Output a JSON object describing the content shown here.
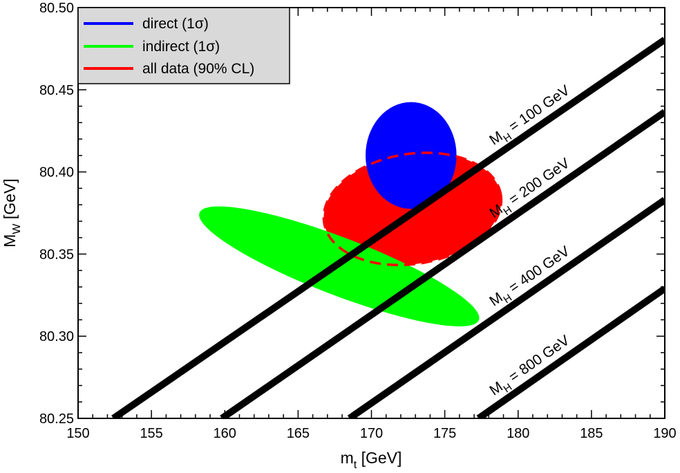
{
  "chart_data": {
    "type": "scatter",
    "title": "",
    "xlabel": {
      "main": "m",
      "sub": "t",
      "unit": "[GeV]"
    },
    "ylabel": {
      "main": "M",
      "sub": "W",
      "unit": "[GeV]"
    },
    "xlim": [
      150,
      190
    ],
    "ylim": [
      80.25,
      80.5
    ],
    "x_ticks": [
      "150",
      "155",
      "160",
      "165",
      "170",
      "175",
      "180",
      "185",
      "190"
    ],
    "y_ticks": [
      "80.25",
      "80.30",
      "80.35",
      "80.40",
      "80.45",
      "80.50"
    ],
    "grid": false,
    "legend_position": "top-left",
    "legend": [
      {
        "label": "direct (1σ)",
        "color": "#0000ff"
      },
      {
        "label": "indirect (1σ)",
        "color": "#00ff00"
      },
      {
        "label": "all data (90% CL)",
        "color": "#ff0000"
      }
    ],
    "regions": [
      {
        "name": "all data (90% CL)",
        "color": "#ff0000",
        "center": [
          172.8,
          80.3775
        ],
        "semi_axes": [
          6.1,
          0.0335
        ],
        "angle_deg": 9
      },
      {
        "name": "direct (1σ)",
        "color": "#0000ff",
        "center": [
          172.7,
          80.41
        ],
        "semi_axes": [
          3.1,
          0.0325
        ],
        "angle_deg": 0
      },
      {
        "name": "indirect (1σ)",
        "color": "#00ff00",
        "center": [
          167.8,
          80.3425
        ],
        "semi_axes": [
          10.2,
          0.0175
        ],
        "angle_deg": -21
      }
    ],
    "higgs_lines": [
      {
        "label_main": "M",
        "label_sub": "H",
        "label_rest": "= 100 GeV",
        "x_start": 152.4,
        "x_end": 190,
        "y_start": 80.25,
        "y_end": 80.4805
      },
      {
        "label_main": "M",
        "label_sub": "H",
        "label_rest": "= 200 GeV",
        "x_start": 159.8,
        "x_end": 190,
        "y_start": 80.25,
        "y_end": 80.4365
      },
      {
        "label_main": "M",
        "label_sub": "H",
        "label_rest": "= 400 GeV",
        "x_start": 168.5,
        "x_end": 190,
        "y_start": 80.25,
        "y_end": 80.383
      },
      {
        "label_main": "M",
        "label_sub": "H",
        "label_rest": "= 800 GeV",
        "x_start": 177.3,
        "x_end": 190,
        "y_start": 80.25,
        "y_end": 80.329
      }
    ],
    "higgs_label_x": [
      182.2,
      182.2,
      182.2,
      182.2
    ]
  }
}
